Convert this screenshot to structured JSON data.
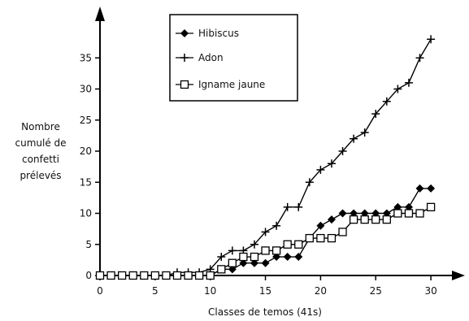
{
  "chart_data": {
    "type": "line",
    "title": "",
    "xlabel": "Classes de temos (41s)",
    "ylabel_lines": [
      "Nombre",
      "cumulé de",
      "confetti",
      "prélevés"
    ],
    "xlim": [
      0,
      30
    ],
    "ylim": [
      0,
      39
    ],
    "xticks": [
      0,
      5,
      10,
      15,
      20,
      25,
      30
    ],
    "yticks": [
      0,
      5,
      10,
      15,
      20,
      25,
      30,
      35
    ],
    "grid": false,
    "legend_position": "top-center",
    "x": [
      0,
      1,
      2,
      3,
      4,
      5,
      6,
      7,
      8,
      9,
      10,
      11,
      12,
      13,
      14,
      15,
      16,
      17,
      18,
      19,
      20,
      21,
      22,
      23,
      24,
      25,
      26,
      27,
      28,
      29,
      30
    ],
    "series": [
      {
        "name": "Hibiscus",
        "marker": "diamond",
        "values": [
          0,
          0,
          0,
          0,
          0,
          0,
          0,
          0,
          0,
          0,
          0,
          1,
          1,
          2,
          2,
          2,
          3,
          3,
          3,
          6,
          8,
          9,
          10,
          10,
          10,
          10,
          10,
          11,
          11,
          14,
          14
        ]
      },
      {
        "name": "Adon",
        "marker": "plus",
        "values": [
          0,
          0,
          0,
          0,
          0,
          0,
          0,
          0.5,
          0.5,
          0.5,
          1,
          3,
          4,
          4,
          5,
          7,
          8,
          11,
          11,
          15,
          17,
          18,
          20,
          22,
          23,
          26,
          28,
          30,
          31,
          35,
          38
        ]
      },
      {
        "name": "Igname jaune",
        "marker": "square",
        "values": [
          0,
          0,
          0,
          0,
          0,
          0,
          0,
          0,
          0,
          0,
          0,
          1,
          2,
          3,
          3,
          4,
          4,
          5,
          5,
          6,
          6,
          6,
          7,
          9,
          9,
          9,
          9,
          10,
          10,
          10,
          11
        ]
      }
    ]
  }
}
